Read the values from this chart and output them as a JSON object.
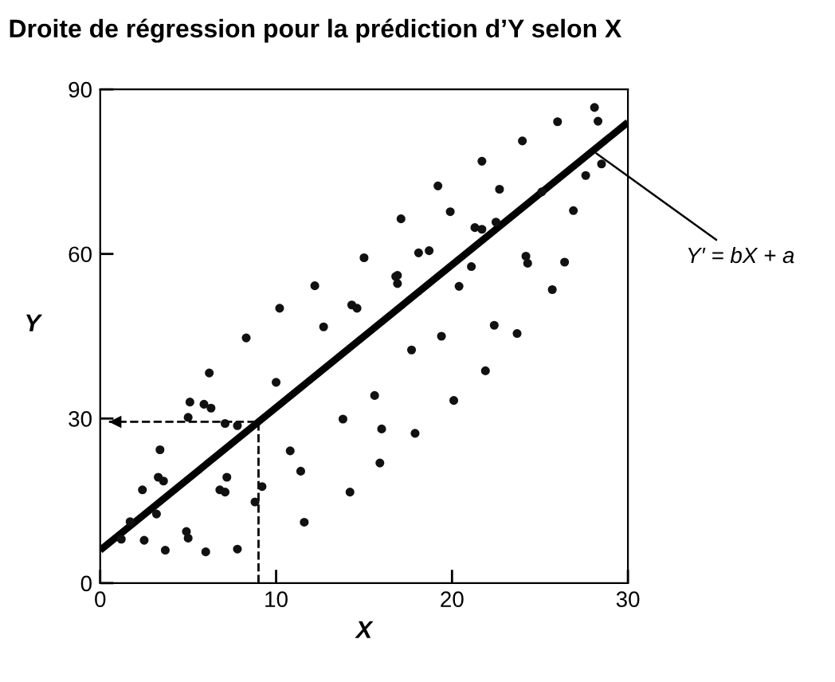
{
  "chart_data": {
    "type": "scatter",
    "title": "Droite de régression pour la prédiction d’Y selon X",
    "xlabel": "X",
    "ylabel": "Y",
    "xlim": [
      0,
      30
    ],
    "ylim": [
      0,
      90
    ],
    "xticks": [
      0,
      10,
      20,
      30
    ],
    "yticks": [
      0,
      30,
      60,
      90
    ],
    "grid": false,
    "legend": false,
    "annotations": [
      {
        "text": "Y′ = bX + a",
        "x": 28,
        "y": 78.8
      }
    ],
    "series": [
      {
        "color": "#111111",
        "marker": "circle",
        "x": [
          15.0,
          16.8,
          12.2,
          10.2,
          14.3,
          14.6,
          12.7,
          8.3,
          6.2,
          10.0,
          15.6,
          5.1,
          5.9,
          6.3,
          5.0,
          7.1,
          7.8,
          13.8,
          16.0,
          3.4,
          10.8,
          11.4,
          15.9,
          3.3,
          3.6,
          7.2,
          2.4,
          6.8,
          7.1,
          9.2,
          14.2,
          8.8,
          3.2,
          11.6,
          1.7,
          4.9,
          5.0,
          2.5,
          1.2,
          3.7,
          6.0,
          7.8,
          28.1,
          26.0,
          28.3,
          24.0,
          21.7,
          28.5,
          27.6,
          19.2,
          22.7,
          25.1,
          19.9,
          26.9,
          17.1,
          22.5,
          21.3,
          21.7,
          18.1,
          18.7,
          24.2,
          24.3,
          26.4,
          16.9,
          16.9,
          21.1,
          20.4,
          25.7,
          22.4,
          23.7,
          19.4,
          17.7,
          21.9,
          20.1,
          17.9
        ],
        "values": [
          59.3,
          55.9,
          54.2,
          50.1,
          50.7,
          50.1,
          46.7,
          44.7,
          38.3,
          36.6,
          34.2,
          33.0,
          32.6,
          31.9,
          30.2,
          29.1,
          28.7,
          29.9,
          28.1,
          24.3,
          24.1,
          20.4,
          21.9,
          19.3,
          18.6,
          19.3,
          17.0,
          17.0,
          16.6,
          17.6,
          16.6,
          14.8,
          12.6,
          11.1,
          11.2,
          9.4,
          8.2,
          7.8,
          8.0,
          6.0,
          5.7,
          6.2,
          86.7,
          84.1,
          84.2,
          80.6,
          76.9,
          76.4,
          74.3,
          72.4,
          71.8,
          71.3,
          67.7,
          67.9,
          66.4,
          65.8,
          64.8,
          64.5,
          60.2,
          60.6,
          59.6,
          58.3,
          58.5,
          56.1,
          54.6,
          57.7,
          54.1,
          53.5,
          47.0,
          45.5,
          45.0,
          42.5,
          38.7,
          33.3,
          27.3
        ]
      },
      {
        "type": "line",
        "color": "#000000",
        "line_style": "solid",
        "marker": "none",
        "x": [
          0,
          30
        ],
        "values": [
          6,
          84
        ]
      },
      {
        "type": "line",
        "color": "#000000",
        "line_style": "dashed",
        "x": [
          9,
          9,
          0.5
        ],
        "values": [
          0,
          29.4,
          29.4
        ]
      }
    ]
  }
}
